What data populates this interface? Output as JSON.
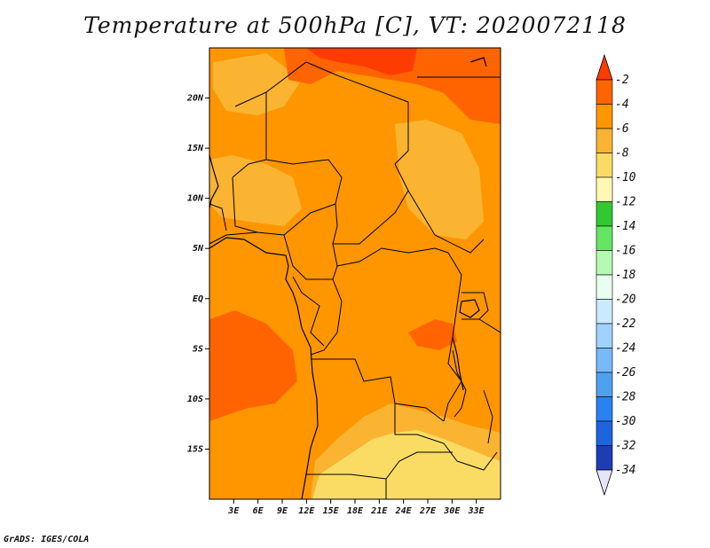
{
  "title": "Temperature at 500hPa [C], VT: 2020072118",
  "credit": "GrADS: IGES/COLA",
  "map": {
    "lon_range": [
      0,
      36
    ],
    "lat_range": [
      -20,
      25
    ],
    "xticks": [
      "3E",
      "6E",
      "9E",
      "12E",
      "15E",
      "18E",
      "21E",
      "24E",
      "27E",
      "30E",
      "33E"
    ],
    "yticks": [
      "20N",
      "15N",
      "10N",
      "5N",
      "EQ",
      "5S",
      "10S",
      "15S"
    ]
  },
  "colorbar": {
    "levels": [
      "-2",
      "-4",
      "-6",
      "-8",
      "-10",
      "-12",
      "-14",
      "-16",
      "-18",
      "-20",
      "-22",
      "-24",
      "-26",
      "-28",
      "-30",
      "-32",
      "-34"
    ],
    "colors": [
      "#ff3c00",
      "#ff6400",
      "#ff9600",
      "#fab432",
      "#fadc64",
      "#fff8b4",
      "#32c832",
      "#64e664",
      "#b4fab4",
      "#e6fff0",
      "#c8ebff",
      "#a0d2ff",
      "#78b9fa",
      "#50a0f0",
      "#2882f0",
      "#1e64dc",
      "#1e3cb4",
      "#0f0f78"
    ]
  },
  "field_colors": {
    "warm_strong": "#ff3c00",
    "warm": "#ff6400",
    "mid": "#ff9600",
    "cool": "#fab432",
    "coolest": "#fadc64"
  }
}
